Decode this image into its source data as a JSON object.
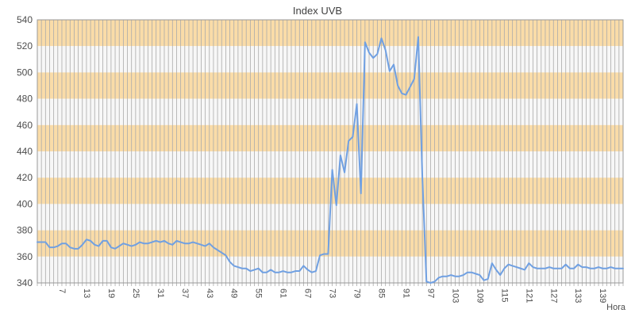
{
  "chart_data": {
    "type": "line",
    "title": "Index UVB",
    "xlabel": "Hora",
    "ylabel": "",
    "ylim": [
      340,
      540
    ],
    "y_ticks": [
      340,
      360,
      380,
      400,
      420,
      440,
      460,
      480,
      500,
      520,
      540
    ],
    "x_start": 1,
    "x_end": 144,
    "x_tick_labels": [
      7,
      13,
      19,
      25,
      31,
      37,
      43,
      49,
      55,
      61,
      67,
      73,
      79,
      85,
      91,
      97,
      103,
      109,
      115,
      121,
      127,
      133,
      139
    ],
    "grid": "vertical-dense",
    "legend_position": "none",
    "band_step": 20,
    "series": [
      {
        "name": "Index UVB",
        "values": [
          371,
          371,
          371,
          367,
          367,
          368,
          370,
          370,
          367,
          366,
          366,
          369,
          373,
          372,
          369,
          368,
          372,
          372,
          367,
          366,
          368,
          370,
          369,
          368,
          369,
          371,
          370,
          370,
          371,
          372,
          371,
          372,
          370,
          369,
          372,
          371,
          370,
          370,
          371,
          370,
          369,
          368,
          370,
          367,
          365,
          363,
          361,
          356,
          353,
          352,
          351,
          351,
          349,
          350,
          351,
          348,
          348,
          350,
          348,
          348,
          349,
          348,
          348,
          349,
          349,
          353,
          350,
          348,
          349,
          361,
          362,
          362,
          426,
          399,
          437,
          424,
          448,
          451,
          476,
          408,
          523,
          515,
          511,
          514,
          526,
          517,
          501,
          506,
          490,
          484,
          483,
          489,
          495,
          527,
          420,
          341,
          340,
          341,
          344,
          345,
          345,
          346,
          345,
          345,
          346,
          348,
          348,
          347,
          346,
          342,
          343,
          355,
          350,
          346,
          351,
          354,
          353,
          352,
          351,
          350,
          355,
          352,
          351,
          351,
          351,
          352,
          351,
          351,
          351,
          354,
          351,
          351,
          354,
          352,
          352,
          351,
          351,
          352,
          351,
          351,
          352,
          351,
          351,
          351
        ]
      }
    ],
    "colors": {
      "line": "#70A0E2",
      "band_orange": "#FADCA8",
      "band_white": "#F7F7F7",
      "gridline": "#AAAAAA",
      "border": "#999999",
      "tick_text": "#4d4d4d",
      "title_text": "#3f3f3f"
    }
  }
}
